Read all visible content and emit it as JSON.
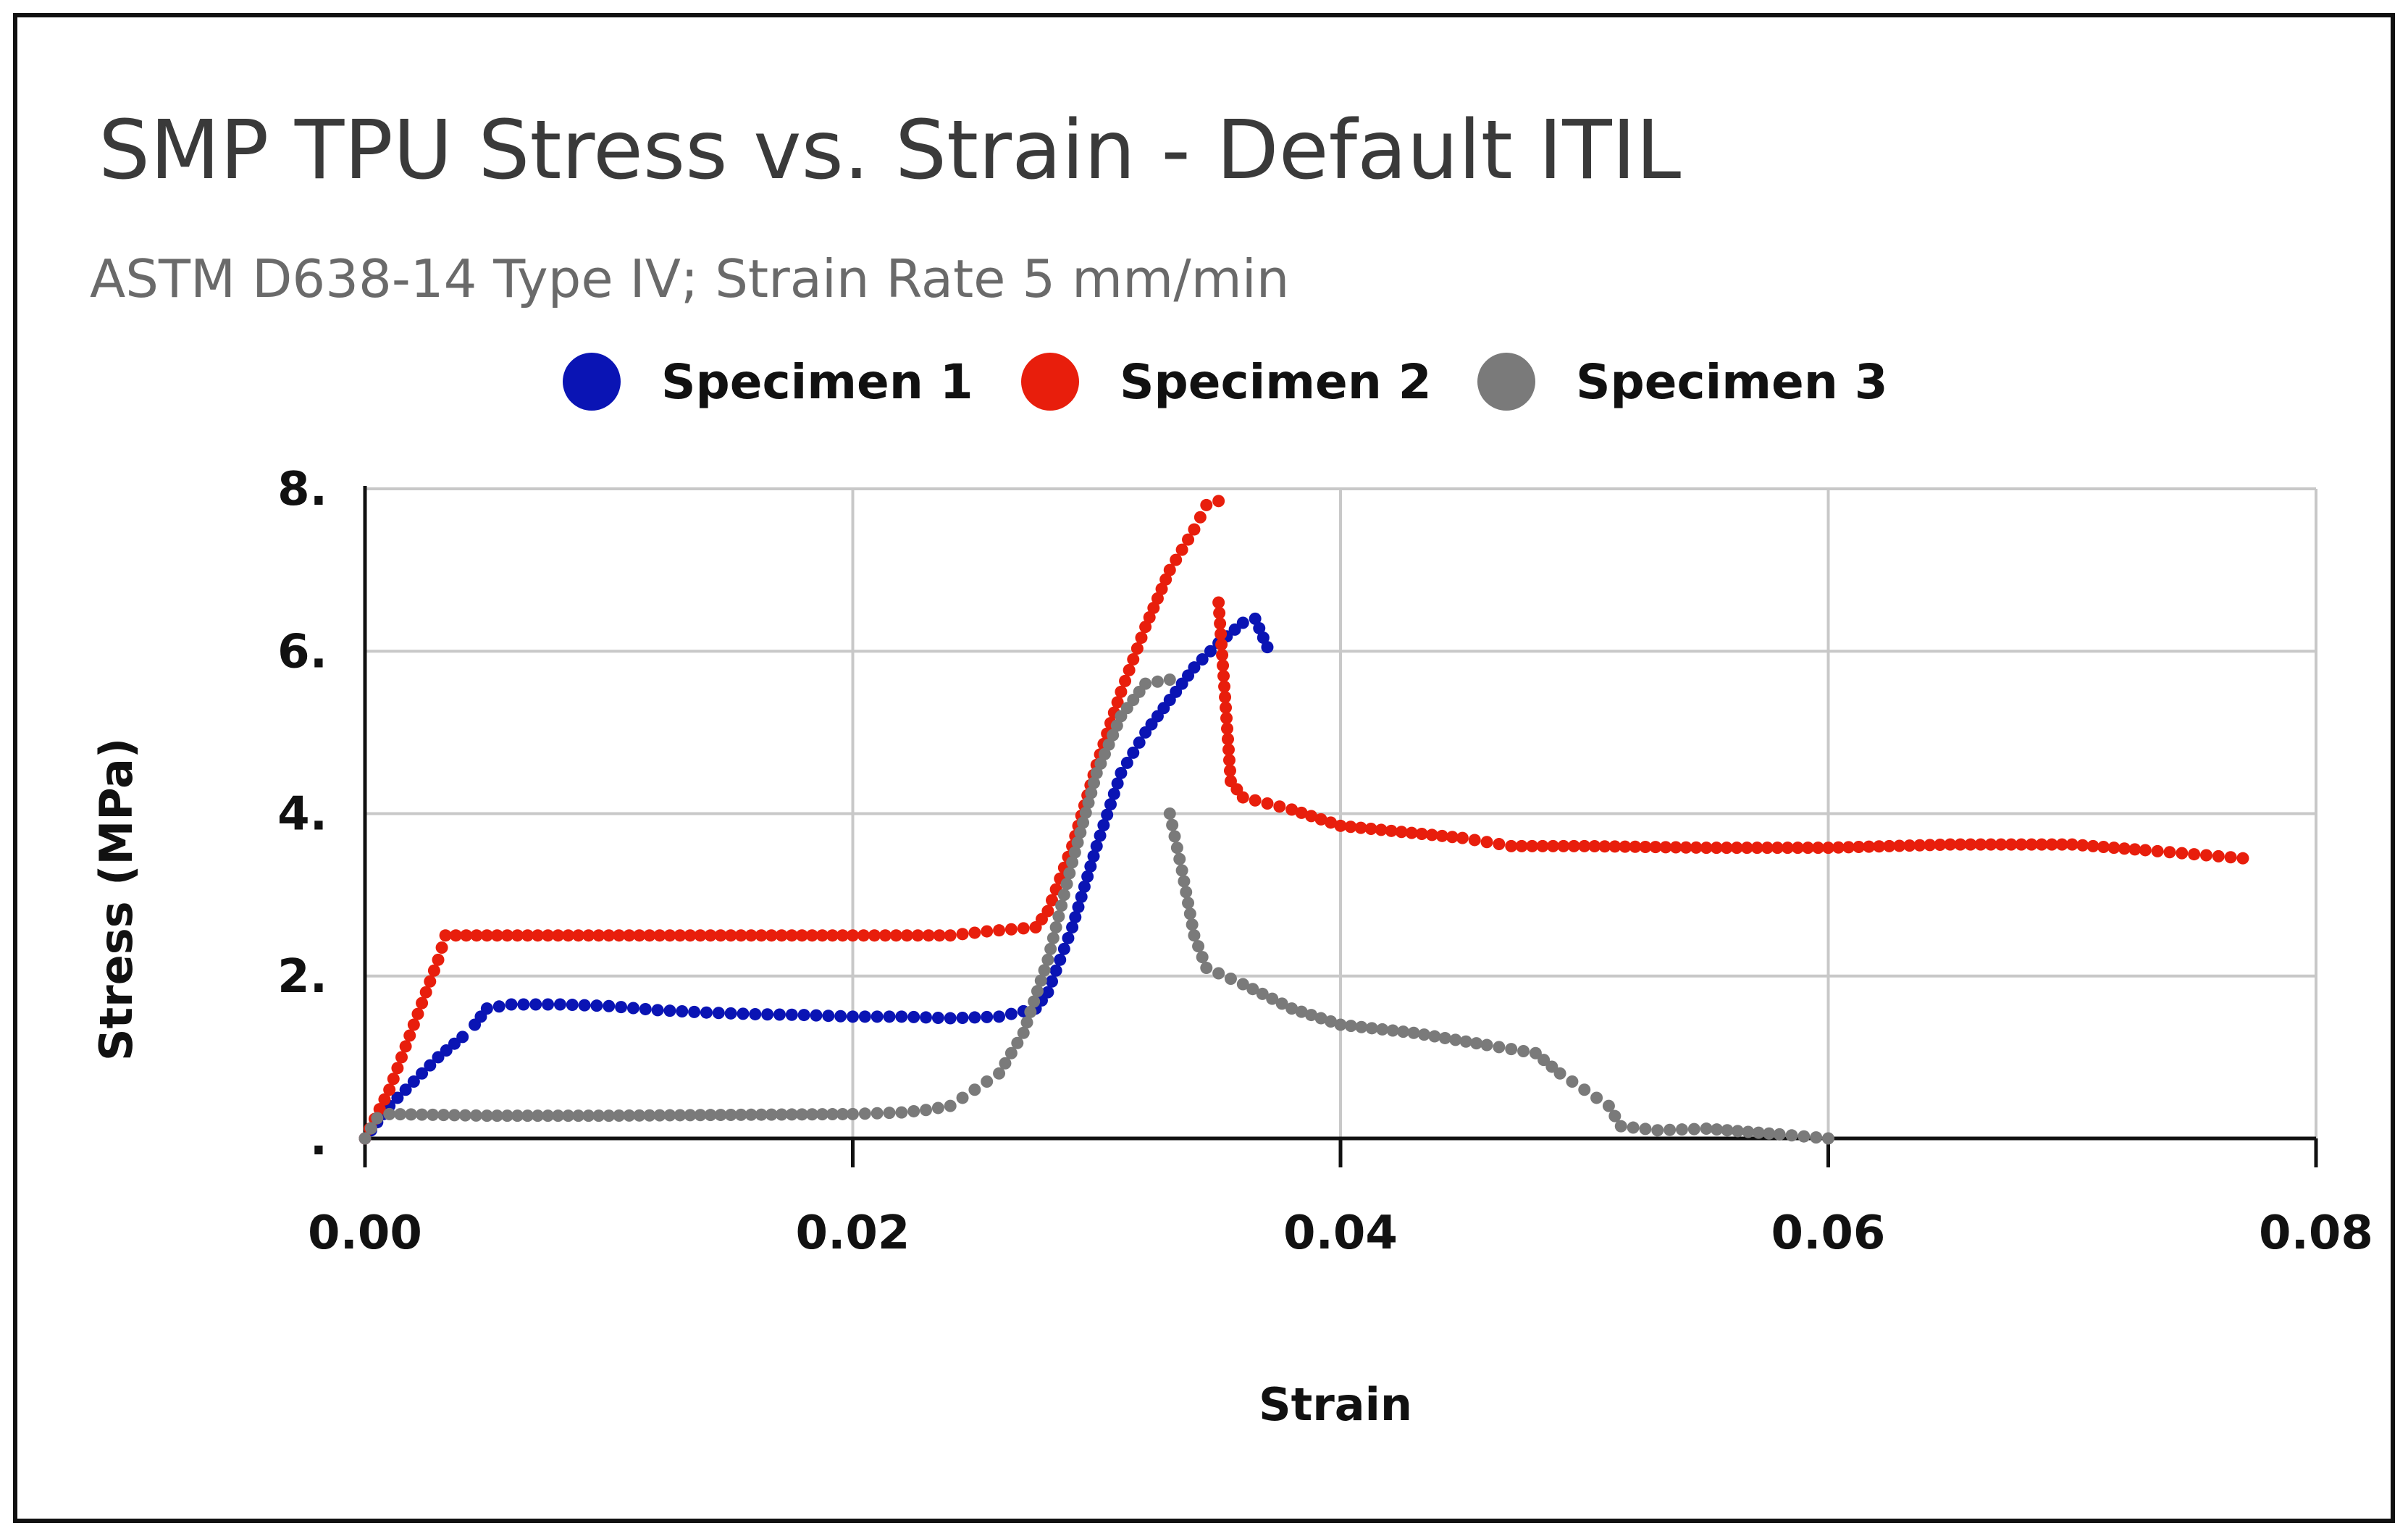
{
  "chart_data": {
    "type": "scatter",
    "title": "SMP TPU Stress vs. Strain - Default ITIL",
    "subtitle": "ASTM D638-14 Type IV; Strain Rate 5 mm/min",
    "xlabel": "Strain",
    "ylabel": "Stress (MPa)",
    "xlim": [
      0,
      0.08
    ],
    "ylim": [
      0,
      8
    ],
    "x_ticks": [
      "0.00",
      "0.02",
      "0.04",
      "0.06",
      "0.08"
    ],
    "y_ticks": [
      ".",
      "2.",
      "4.",
      "6.",
      "8."
    ],
    "x_tick_values": [
      0,
      0.02,
      0.04,
      0.06,
      0.08
    ],
    "y_tick_values": [
      0,
      2,
      4,
      6,
      8
    ],
    "grid": true,
    "legend_position": "top",
    "series": [
      {
        "name": "Specimen 1",
        "color": "#0a14b4",
        "points": [
          [
            0.0,
            0.0
          ],
          [
            0.001,
            0.4
          ],
          [
            0.002,
            0.7
          ],
          [
            0.003,
            1.0
          ],
          [
            0.004,
            1.25
          ],
          [
            0.0045,
            1.4
          ],
          [
            0.005,
            1.6
          ],
          [
            0.006,
            1.65
          ],
          [
            0.008,
            1.65
          ],
          [
            0.01,
            1.63
          ],
          [
            0.012,
            1.58
          ],
          [
            0.014,
            1.55
          ],
          [
            0.016,
            1.53
          ],
          [
            0.018,
            1.52
          ],
          [
            0.02,
            1.5
          ],
          [
            0.022,
            1.5
          ],
          [
            0.024,
            1.48
          ],
          [
            0.026,
            1.5
          ],
          [
            0.0275,
            1.6
          ],
          [
            0.028,
            1.8
          ],
          [
            0.029,
            2.6
          ],
          [
            0.03,
            3.6
          ],
          [
            0.031,
            4.5
          ],
          [
            0.032,
            5.0
          ],
          [
            0.033,
            5.4
          ],
          [
            0.034,
            5.8
          ],
          [
            0.035,
            6.1
          ],
          [
            0.036,
            6.35
          ],
          [
            0.0365,
            6.4
          ],
          [
            0.037,
            6.05
          ]
        ]
      },
      {
        "name": "Specimen 2",
        "color": "#e81e0c",
        "points": [
          [
            0.0,
            0.0
          ],
          [
            0.001,
            0.6
          ],
          [
            0.002,
            1.4
          ],
          [
            0.003,
            2.2
          ],
          [
            0.0033,
            2.5
          ],
          [
            0.005,
            2.5
          ],
          [
            0.01,
            2.5
          ],
          [
            0.015,
            2.5
          ],
          [
            0.02,
            2.5
          ],
          [
            0.024,
            2.5
          ],
          [
            0.0255,
            2.55
          ],
          [
            0.0275,
            2.6
          ],
          [
            0.028,
            2.8
          ],
          [
            0.029,
            3.6
          ],
          [
            0.03,
            4.6
          ],
          [
            0.031,
            5.5
          ],
          [
            0.032,
            6.3
          ],
          [
            0.033,
            7.0
          ],
          [
            0.034,
            7.5
          ],
          [
            0.0345,
            7.8
          ],
          [
            0.035,
            7.85
          ],
          [
            0.035,
            6.6
          ],
          [
            0.0355,
            4.4
          ],
          [
            0.036,
            4.2
          ],
          [
            0.038,
            4.05
          ],
          [
            0.04,
            3.85
          ],
          [
            0.045,
            3.7
          ],
          [
            0.047,
            3.6
          ],
          [
            0.05,
            3.6
          ],
          [
            0.055,
            3.58
          ],
          [
            0.06,
            3.58
          ],
          [
            0.065,
            3.62
          ],
          [
            0.07,
            3.62
          ],
          [
            0.073,
            3.55
          ],
          [
            0.075,
            3.5
          ],
          [
            0.077,
            3.45
          ]
        ]
      },
      {
        "name": "Specimen 3",
        "color": "#7a7a7a",
        "points": [
          [
            0.0,
            0.0
          ],
          [
            0.0005,
            0.25
          ],
          [
            0.001,
            0.3
          ],
          [
            0.005,
            0.28
          ],
          [
            0.01,
            0.28
          ],
          [
            0.015,
            0.29
          ],
          [
            0.02,
            0.3
          ],
          [
            0.022,
            0.32
          ],
          [
            0.023,
            0.35
          ],
          [
            0.024,
            0.4
          ],
          [
            0.025,
            0.6
          ],
          [
            0.026,
            0.8
          ],
          [
            0.027,
            1.3
          ],
          [
            0.028,
            2.2
          ],
          [
            0.029,
            3.4
          ],
          [
            0.03,
            4.5
          ],
          [
            0.031,
            5.2
          ],
          [
            0.032,
            5.6
          ],
          [
            0.033,
            5.65
          ],
          [
            0.033,
            4.0
          ],
          [
            0.0335,
            3.3
          ],
          [
            0.034,
            2.5
          ],
          [
            0.0345,
            2.1
          ],
          [
            0.036,
            1.9
          ],
          [
            0.038,
            1.6
          ],
          [
            0.04,
            1.4
          ],
          [
            0.043,
            1.3
          ],
          [
            0.046,
            1.15
          ],
          [
            0.048,
            1.05
          ],
          [
            0.049,
            0.8
          ],
          [
            0.05,
            0.6
          ],
          [
            0.051,
            0.4
          ],
          [
            0.0515,
            0.15
          ],
          [
            0.053,
            0.1
          ],
          [
            0.055,
            0.12
          ],
          [
            0.058,
            0.05
          ],
          [
            0.06,
            0.0
          ]
        ]
      }
    ]
  }
}
